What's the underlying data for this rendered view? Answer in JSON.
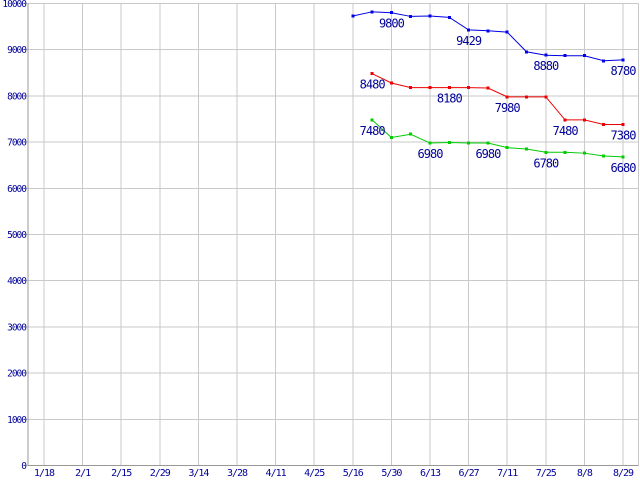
{
  "chart_data": {
    "type": "line",
    "title": "",
    "xlabel": "",
    "ylabel": "",
    "x_tick_labels": [
      "1/18",
      "2/1",
      "2/15",
      "2/29",
      "3/14",
      "3/28",
      "4/11",
      "4/25",
      "5/16",
      "5/30",
      "6/13",
      "6/27",
      "7/11",
      "7/25",
      "8/8",
      "8/29"
    ],
    "y_ticks": [
      10000,
      9000,
      8000,
      7000,
      6000,
      5000,
      4000,
      3000,
      2000,
      1000,
      0
    ],
    "ylim": [
      0,
      10000
    ],
    "grid": true,
    "legend": "none",
    "colors": {
      "background": "#FFFFFF",
      "grid": "#C9C9C9",
      "axis": "#999999",
      "text": "#000099"
    },
    "series": [
      {
        "name": "blue",
        "color": "#0000E6",
        "start_tick": 8,
        "tick_step": 0.5,
        "values": [
          9730,
          9820,
          9800,
          9720,
          9730,
          9700,
          9429,
          9410,
          9380,
          8955,
          8880,
          8870,
          8870,
          8760,
          8780
        ]
      },
      {
        "name": "red",
        "color": "#EE0000",
        "start_tick": 8.5,
        "tick_step": 0.5,
        "values": [
          8480,
          8280,
          8180,
          8180,
          8180,
          8180,
          8170,
          7980,
          7980,
          7980,
          7480,
          7480,
          7380,
          7380
        ]
      },
      {
        "name": "green",
        "color": "#00CC00",
        "start_tick": 8.5,
        "tick_step": 0.5,
        "values": [
          7480,
          7100,
          7170,
          6980,
          6990,
          6980,
          6980,
          6880,
          6850,
          6780,
          6780,
          6760,
          6700,
          6680
        ]
      }
    ],
    "point_labels": [
      {
        "series": 0,
        "point": 2,
        "text": "9800"
      },
      {
        "series": 0,
        "point": 6,
        "text": "9429"
      },
      {
        "series": 0,
        "point": 10,
        "text": "8880"
      },
      {
        "series": 0,
        "point": 14,
        "text": "8780"
      },
      {
        "series": 1,
        "point": 0,
        "text": "8480"
      },
      {
        "series": 1,
        "point": 4,
        "text": "8180"
      },
      {
        "series": 1,
        "point": 7,
        "text": "7980"
      },
      {
        "series": 1,
        "point": 10,
        "text": "7480"
      },
      {
        "series": 1,
        "point": 13,
        "text": "7380"
      },
      {
        "series": 2,
        "point": 0,
        "text": "7480"
      },
      {
        "series": 2,
        "point": 3,
        "text": "6980"
      },
      {
        "series": 2,
        "point": 6,
        "text": "6980"
      },
      {
        "series": 2,
        "point": 9,
        "text": "6780"
      },
      {
        "series": 2,
        "point": 13,
        "text": "6680"
      }
    ]
  }
}
